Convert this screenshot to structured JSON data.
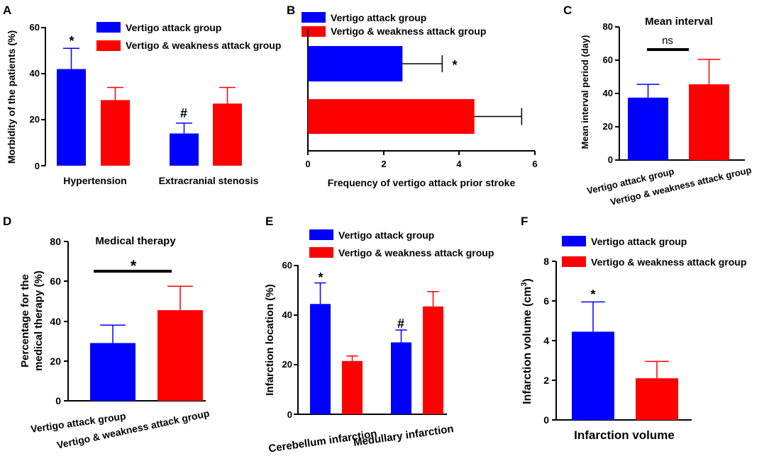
{
  "colors": {
    "group1": "#0000FF",
    "group2": "#FF0000",
    "axis": "#000000"
  },
  "legend": {
    "group1": "Vertigo attack group",
    "group2": "Vertigo & weakness attack group"
  },
  "chart_data": [
    {
      "panel": "A",
      "type": "bar",
      "title": "",
      "ylabel": "Morbidity of the patients (%)",
      "xlabel": "",
      "ylim": [
        0,
        60
      ],
      "yticks": [
        "0",
        "20",
        "40",
        "60"
      ],
      "categories": [
        "Hypertension",
        "Extracranial stenosis"
      ],
      "series": [
        {
          "name": "Vertigo attack group",
          "values": [
            42,
            14
          ],
          "errors": [
            9,
            4.5
          ]
        },
        {
          "name": "Vertigo & weakness attack group",
          "values": [
            28.5,
            27
          ],
          "errors": [
            5.5,
            7
          ]
        }
      ],
      "annotations": [
        "*",
        "#"
      ]
    },
    {
      "panel": "B",
      "type": "bar",
      "orientation": "horizontal",
      "title": "",
      "xlabel": "Frequency of vertigo attack prior stroke",
      "ylabel": "",
      "xlim": [
        0,
        6
      ],
      "xticks": [
        "0",
        "2",
        "4",
        "6"
      ],
      "series": [
        {
          "name": "Vertigo attack group",
          "values": [
            2.5
          ],
          "errors": [
            1.05
          ]
        },
        {
          "name": "Vertigo & weakness attack group",
          "values": [
            4.4
          ],
          "errors": [
            1.25
          ]
        }
      ],
      "annotations": [
        "*"
      ]
    },
    {
      "panel": "C",
      "type": "bar",
      "title": "Mean interval",
      "ylabel": "Mean interval period (day)",
      "xlabel": "",
      "ylim": [
        0,
        80
      ],
      "yticks": [
        "0",
        "20",
        "40",
        "60",
        "80"
      ],
      "categories": [
        "Vertigo attack group",
        "Vertigo & weakness attack group"
      ],
      "values": [
        37.5,
        45.5
      ],
      "errors": [
        8,
        15
      ],
      "annotations": [
        "ns"
      ]
    },
    {
      "panel": "D",
      "type": "bar",
      "title": "Medical therapy",
      "ylabel": [
        "Percentage for the",
        "medical therapy (%)"
      ],
      "xlabel": "",
      "ylim": [
        0,
        80
      ],
      "yticks": [
        "0",
        "20",
        "40",
        "60",
        "80"
      ],
      "categories": [
        "Vertigo attack group",
        "Vertigo & weakness attack group"
      ],
      "values": [
        29,
        45.5
      ],
      "errors": [
        9,
        12
      ],
      "annotations": [
        "*"
      ]
    },
    {
      "panel": "E",
      "type": "bar",
      "title": "",
      "ylabel": "Infarction location (%)",
      "xlabel": "",
      "ylim": [
        0,
        60
      ],
      "yticks": [
        "0",
        "20",
        "40",
        "60"
      ],
      "categories": [
        "Cerebellum infarction",
        "Medullary infarction"
      ],
      "series": [
        {
          "name": "Vertigo attack group",
          "values": [
            44.5,
            29
          ],
          "errors": [
            8.5,
            5
          ]
        },
        {
          "name": "Vertigo & weakness attack group",
          "values": [
            21.5,
            43.5
          ],
          "errors": [
            2,
            6
          ]
        }
      ],
      "annotations": [
        "*",
        "#"
      ]
    },
    {
      "panel": "F",
      "type": "bar",
      "title": "",
      "ylabel": "Infarction volume (cm",
      "ylabel_sup": "3",
      "ylabel_end": ")",
      "xlabel": "Infarction volume",
      "ylim": [
        0,
        8
      ],
      "yticks": [
        "0",
        "2",
        "4",
        "6",
        "8"
      ],
      "series": [
        {
          "name": "Vertigo attack group",
          "values": [
            4.45
          ],
          "errors": [
            1.5
          ]
        },
        {
          "name": "Vertigo & weakness attack group",
          "values": [
            2.1
          ],
          "errors": [
            0.85
          ]
        }
      ],
      "annotations": [
        "*"
      ]
    }
  ]
}
